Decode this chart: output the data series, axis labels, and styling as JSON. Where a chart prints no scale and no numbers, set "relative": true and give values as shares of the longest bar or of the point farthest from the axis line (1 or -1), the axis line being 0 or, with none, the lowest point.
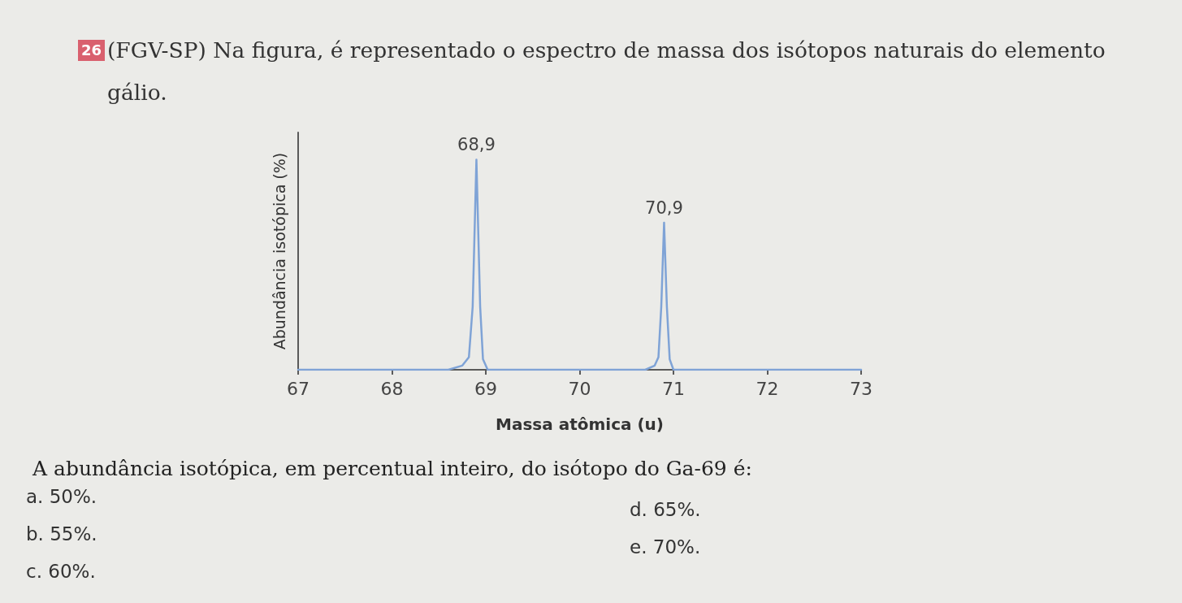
{
  "chart_data": {
    "type": "line",
    "title": "(FGV-SP) Na figura, é representado o espectro de massa dos isótopos naturais do elemento gálio.",
    "xlabel": "Massa atômica (u)",
    "ylabel": "Abundância isotópica (%)",
    "relative": true,
    "x": [
      67,
      68.6,
      68.75,
      68.82,
      68.86,
      68.9,
      68.94,
      68.97,
      69.02,
      70.7,
      70.8,
      70.84,
      70.87,
      70.9,
      70.93,
      70.96,
      71.0,
      73
    ],
    "series": [
      {
        "color": "#7fa3d6",
        "values": [
          0,
          0,
          0.02,
          0.06,
          0.3,
          1,
          0.3,
          0.05,
          0,
          0,
          0.02,
          0.06,
          0.3,
          0.7,
          0.3,
          0.05,
          0,
          0
        ]
      }
    ],
    "xlim": [
      67,
      73
    ],
    "xticks": [
      67,
      68,
      69,
      70,
      71,
      72,
      73
    ],
    "marker": "none",
    "annotations": [
      "26",
      "A abundância isotópica, em percentual inteiro, do isótopo do Ga-69 é:",
      "a. 50%.",
      "b. 55%.",
      "c. 60%.",
      "d. 65%.",
      "e. 70%.",
      {
        "text": "68,9",
        "x": 68.9,
        "y": 1
      },
      {
        "text": "70,9",
        "x": 70.9,
        "y": 0.7
      }
    ]
  }
}
